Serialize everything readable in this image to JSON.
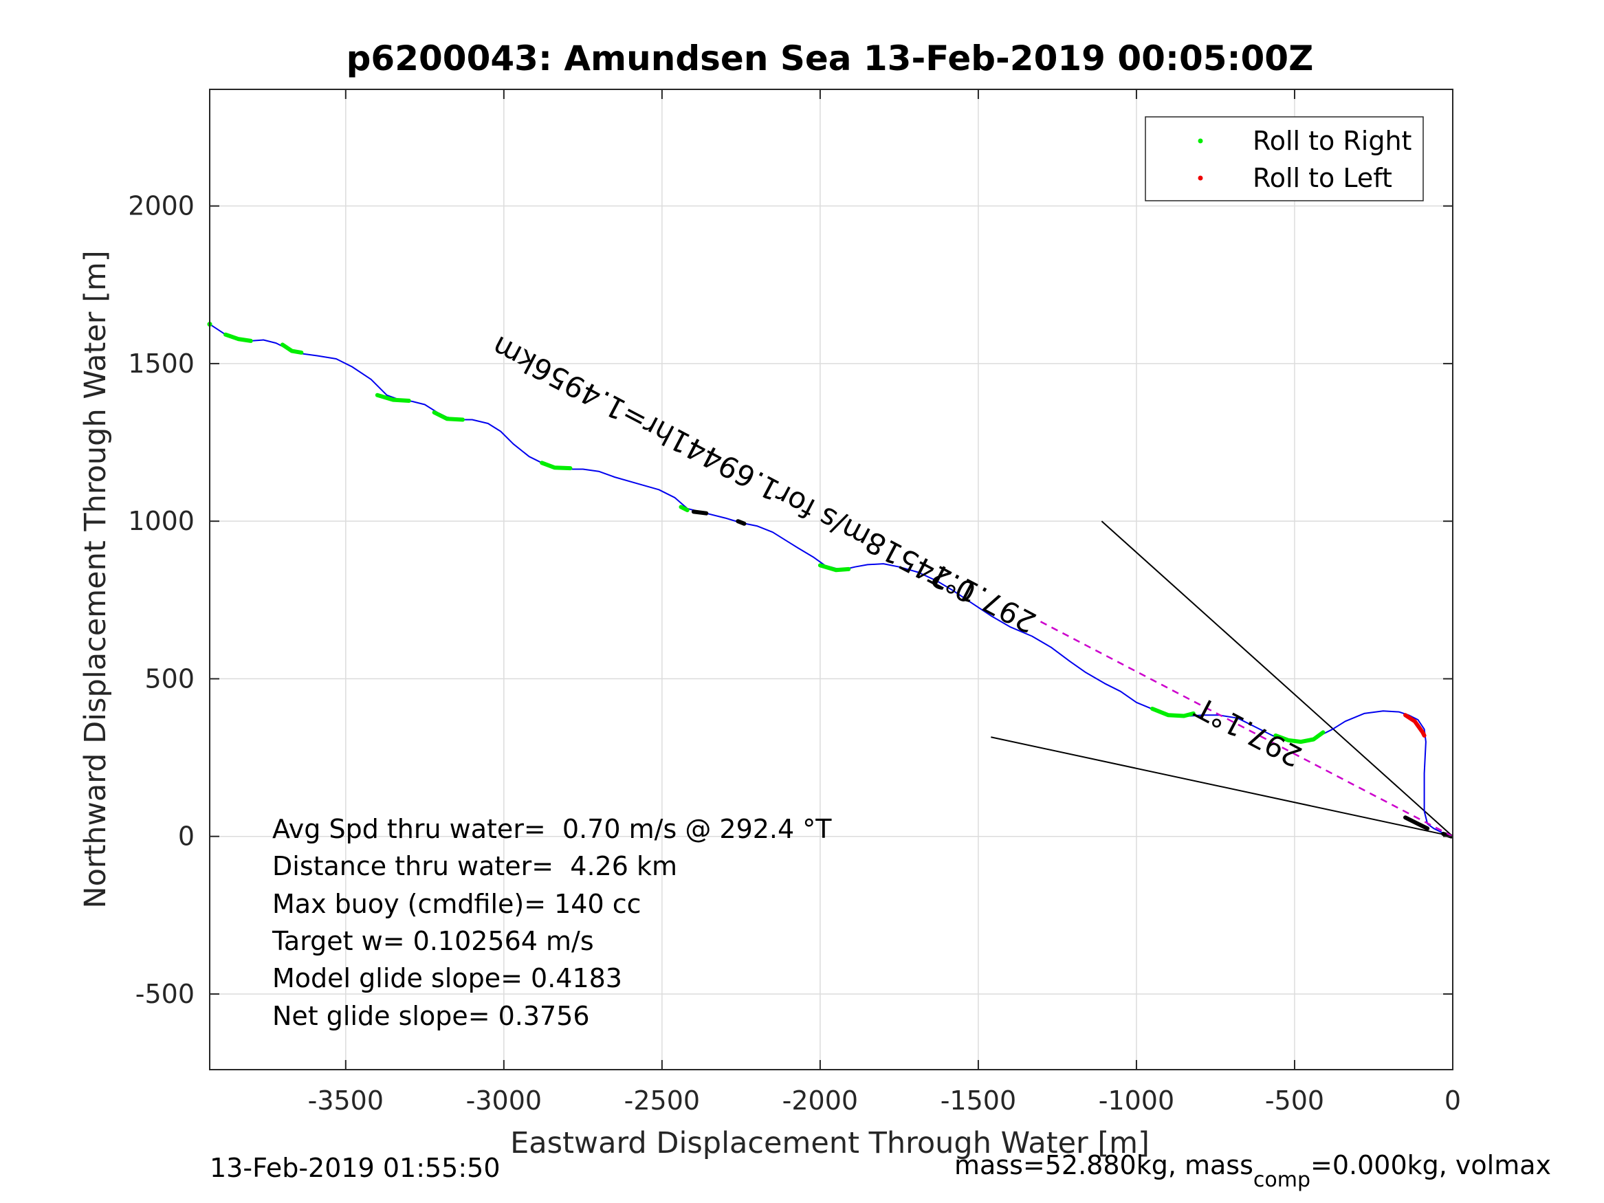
{
  "chart_data": {
    "type": "line",
    "title": "p6200043: Amundsen Sea 13-Feb-2019 00:05:00Z",
    "xlabel": "Eastward Displacement Through Water [m]",
    "ylabel": "Northward Displacement Through Water [m]",
    "xlim": [
      -3930,
      0
    ],
    "ylim": [
      -740,
      2370
    ],
    "x_ticks": [
      -3500,
      -3000,
      -2500,
      -2000,
      -1500,
      -1000,
      -500,
      0
    ],
    "x_tick_labels": [
      "-3500",
      "-3000",
      "-2500",
      "-2000",
      "-1500",
      "-1000",
      "-500",
      "0"
    ],
    "y_ticks": [
      -500,
      0,
      500,
      1000,
      1500,
      2000
    ],
    "y_tick_labels": [
      "-500",
      "0",
      "500",
      "1000",
      "1500",
      "2000"
    ],
    "grid": true,
    "legend_position": "top-right",
    "legend": [
      {
        "label": "Roll to Right",
        "color": "#00ee00"
      },
      {
        "label": "Roll to Left",
        "color": "#ee0000"
      }
    ],
    "series": [
      {
        "kind": "track",
        "color": "#0000ee",
        "points": [
          [
            0,
            0
          ],
          [
            -30,
            10
          ],
          [
            -60,
            25
          ],
          [
            -80,
            40
          ],
          [
            -90,
            80
          ],
          [
            -90,
            200
          ],
          [
            -85,
            300
          ],
          [
            -90,
            340
          ],
          [
            -110,
            370
          ],
          [
            -140,
            385
          ],
          [
            -170,
            395
          ],
          [
            -220,
            398
          ],
          [
            -280,
            390
          ],
          [
            -340,
            365
          ],
          [
            -380,
            340
          ],
          [
            -420,
            320
          ],
          [
            -450,
            305
          ],
          [
            -490,
            300
          ],
          [
            -530,
            305
          ],
          [
            -570,
            320
          ],
          [
            -620,
            345
          ],
          [
            -680,
            375
          ],
          [
            -740,
            385
          ],
          [
            -790,
            385
          ],
          [
            -830,
            382
          ],
          [
            -870,
            380
          ],
          [
            -900,
            385
          ],
          [
            -940,
            400
          ],
          [
            -1000,
            425
          ],
          [
            -1050,
            460
          ],
          [
            -1100,
            485
          ],
          [
            -1160,
            520
          ],
          [
            -1210,
            555
          ],
          [
            -1270,
            600
          ],
          [
            -1330,
            635
          ],
          [
            -1400,
            665
          ],
          [
            -1460,
            700
          ],
          [
            -1520,
            740
          ],
          [
            -1580,
            780
          ],
          [
            -1630,
            810
          ],
          [
            -1690,
            838
          ],
          [
            -1750,
            855
          ],
          [
            -1800,
            865
          ],
          [
            -1850,
            862
          ],
          [
            -1890,
            855
          ],
          [
            -1920,
            848
          ],
          [
            -1950,
            850
          ],
          [
            -1985,
            860
          ],
          [
            -2020,
            885
          ],
          [
            -2070,
            915
          ],
          [
            -2110,
            940
          ],
          [
            -2150,
            965
          ],
          [
            -2200,
            985
          ],
          [
            -2250,
            995
          ],
          [
            -2300,
            1010
          ],
          [
            -2360,
            1025
          ],
          [
            -2420,
            1040
          ],
          [
            -2460,
            1075
          ],
          [
            -2510,
            1100
          ],
          [
            -2580,
            1120
          ],
          [
            -2650,
            1140
          ],
          [
            -2700,
            1158
          ],
          [
            -2750,
            1165
          ],
          [
            -2800,
            1165
          ],
          [
            -2840,
            1170
          ],
          [
            -2880,
            1185
          ],
          [
            -2920,
            1205
          ],
          [
            -2970,
            1245
          ],
          [
            -3010,
            1285
          ],
          [
            -3050,
            1310
          ],
          [
            -3100,
            1322
          ],
          [
            -3140,
            1322
          ],
          [
            -3180,
            1330
          ],
          [
            -3210,
            1345
          ],
          [
            -3250,
            1370
          ],
          [
            -3290,
            1380
          ],
          [
            -3330,
            1385
          ],
          [
            -3370,
            1400
          ],
          [
            -3420,
            1450
          ],
          [
            -3480,
            1490
          ],
          [
            -3530,
            1515
          ],
          [
            -3590,
            1525
          ],
          [
            -3650,
            1533
          ],
          [
            -3680,
            1545
          ],
          [
            -3720,
            1565
          ],
          [
            -3760,
            1575
          ],
          [
            -3800,
            1572
          ],
          [
            -3840,
            1578
          ],
          [
            -3880,
            1592
          ],
          [
            -3930,
            1625
          ]
        ]
      },
      {
        "kind": "roll-right",
        "color": "#00ee00",
        "segments": [
          [
            [
              -3880,
              1592
            ],
            [
              -3840,
              1578
            ],
            [
              -3800,
              1572
            ]
          ],
          [
            [
              -3700,
              1560
            ],
            [
              -3670,
              1540
            ],
            [
              -3640,
              1535
            ]
          ],
          [
            [
              -3400,
              1400
            ],
            [
              -3350,
              1385
            ],
            [
              -3300,
              1382
            ]
          ],
          [
            [
              -3220,
              1345
            ],
            [
              -3180,
              1325
            ],
            [
              -3130,
              1322
            ]
          ],
          [
            [
              -2880,
              1185
            ],
            [
              -2840,
              1170
            ],
            [
              -2790,
              1168
            ]
          ],
          [
            [
              -2440,
              1045
            ],
            [
              -2420,
              1035
            ]
          ],
          [
            [
              -2000,
              860
            ],
            [
              -1950,
              845
            ],
            [
              -1910,
              848
            ]
          ],
          [
            [
              -950,
              405
            ],
            [
              -900,
              385
            ],
            [
              -850,
              382
            ],
            [
              -820,
              390
            ]
          ],
          [
            [
              -560,
              320
            ],
            [
              -520,
              305
            ],
            [
              -480,
              300
            ],
            [
              -440,
              308
            ],
            [
              -410,
              330
            ]
          ],
          [
            [
              -3930,
              1625
            ]
          ]
        ]
      },
      {
        "kind": "roll-left",
        "color": "#ee0000",
        "segments": [
          [
            [
              -150,
              385
            ],
            [
              -120,
              365
            ],
            [
              -95,
              330
            ],
            [
              -90,
              320
            ]
          ]
        ]
      },
      {
        "kind": "black-marks",
        "color": "#000000",
        "segments": [
          [
            [
              -2400,
              1030
            ],
            [
              -2360,
              1025
            ]
          ],
          [
            [
              -2260,
              1000
            ],
            [
              -2240,
              992
            ]
          ],
          [
            [
              -150,
              60
            ],
            [
              -110,
              40
            ],
            [
              -80,
              25
            ]
          ],
          [
            [
              -30,
              8
            ],
            [
              -5,
              0
            ]
          ]
        ]
      },
      {
        "kind": "current-line",
        "color": "#cc00cc",
        "points": [
          [
            0,
            0
          ],
          [
            -1310,
            685
          ]
        ]
      }
    ],
    "wedge_lines": [
      [
        [
          0,
          0
        ],
        [
          -1110,
          1000
        ]
      ],
      [
        [
          0,
          0
        ],
        [
          -1460,
          315
        ]
      ]
    ],
    "annotations": [
      {
        "text": "0.24518m/s for1.69441hr=1.4956km",
        "x": -1500,
        "y": 795,
        "angle_deg": 207.6
      },
      {
        "text": "297.1°T",
        "x": -1310,
        "y": 700,
        "angle_deg": 207.6
      },
      {
        "text": "297.1°T",
        "x": -470,
        "y": 275,
        "angle_deg": 207.6
      }
    ]
  },
  "stats": {
    "line1": "Avg Spd thru water=  0.70 m/s @ 292.4 °T",
    "line2": "Distance thru water=  4.26 km",
    "line3": "Max buoy (cmdfile)= 140 cc",
    "line4": "Target w= 0.102564 m/s",
    "line5": "Model glide slope= 0.4183",
    "line6": "Net glide slope= 0.3756"
  },
  "footer": {
    "timestamp": "13-Feb-2019 01:55:50",
    "mass_prefix": "mass=52.880kg, mass",
    "mass_sub": "comp",
    "mass_suffix": "=0.000kg, volmax"
  }
}
